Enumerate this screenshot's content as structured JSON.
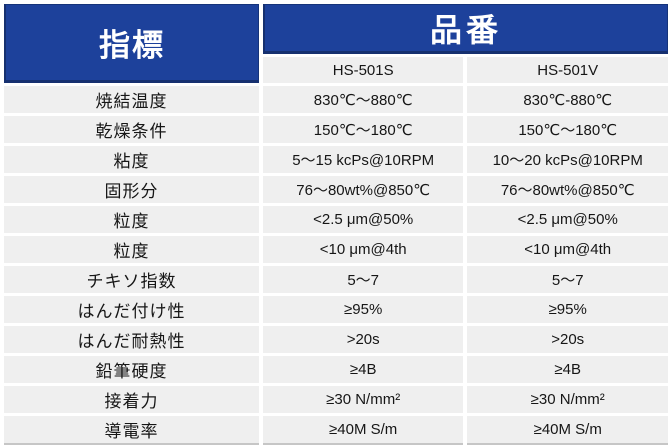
{
  "chart_data": {
    "type": "table",
    "header": {
      "indicator": "指標",
      "part_number": "品番",
      "columns": [
        "HS-501S",
        "HS-501V"
      ]
    },
    "rows": [
      [
        "焼結温度",
        "830℃～880℃",
        "830℃-880℃"
      ],
      [
        "乾燥条件",
        "150℃～180℃",
        "150℃～180℃"
      ],
      [
        "粘度",
        "5～15 kcPs@10RPM",
        "10～20 kcPs@10RPM"
      ],
      [
        "固形分",
        "76～80wt%@850℃",
        "76～80wt%@850℃"
      ],
      [
        "粒度",
        "<2.5 μm@50%",
        "<2.5 μm@50%"
      ],
      [
        "粒度",
        "<10 μm@4th",
        "<10 μm@4th"
      ],
      [
        "チキソ指数",
        "5～7",
        "5～7"
      ],
      [
        "はんだ付け性",
        "≥95%",
        "≥95%"
      ],
      [
        "はんだ耐熱性",
        ">20s",
        ">20s"
      ],
      [
        "鉛筆硬度",
        "≥4B",
        "≥4B"
      ],
      [
        "接着力",
        "≥30 N/mm²",
        "≥30 N/mm²"
      ],
      [
        "導電率",
        "≥40M S/m",
        "≥40M S/m"
      ]
    ],
    "layout": {
      "grid": "off",
      "legend": "none"
    }
  },
  "colors": {
    "header_blue": "#1d419b",
    "header_blue_border": "#16306f",
    "row_gray": "#efefef",
    "text": "#161616",
    "background": "#ffffff"
  }
}
